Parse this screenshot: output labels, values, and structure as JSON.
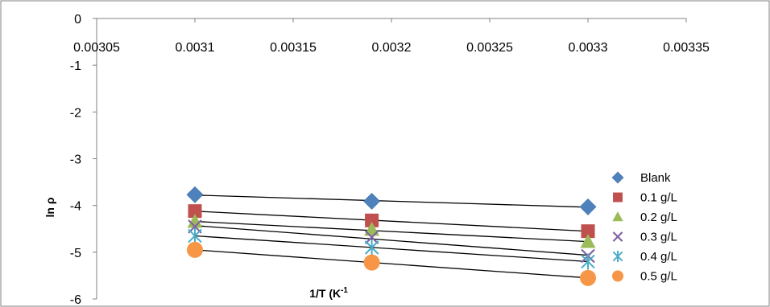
{
  "chart_data": {
    "type": "scatter",
    "title": "",
    "xlabel": "1/T (K-1",
    "xlabel_main": "1/T (K",
    "xlabel_sup": "-1",
    "ylabel": "ln ρ",
    "xlim": [
      0.00305,
      0.00335
    ],
    "ylim": [
      -6,
      0
    ],
    "x_tick_labels": [
      "0.00305",
      "0.0031",
      "0.00315",
      "0.0032",
      "0.00325",
      "0.0033",
      "0.00335"
    ],
    "y_tick_labels": [
      "0",
      "-1",
      "-2",
      "-3",
      "-4",
      "-5",
      "-6"
    ],
    "x_ticks": [
      0.00305,
      0.0031,
      0.00315,
      0.0032,
      0.00325,
      0.0033,
      0.00335
    ],
    "y_ticks": [
      0,
      -1,
      -2,
      -3,
      -4,
      -5,
      -6
    ],
    "x_axis_position": "top",
    "grid": false,
    "legend_position": "right",
    "trendlines": true,
    "series": [
      {
        "name": "Blank",
        "marker": "diamond",
        "color": "#4F81BD",
        "x": [
          0.0031,
          0.00319,
          0.0033
        ],
        "y": [
          -3.77,
          -3.91,
          -4.03
        ]
      },
      {
        "name": "0.1 g/L",
        "marker": "square",
        "color": "#C0504D",
        "x": [
          0.0031,
          0.00319,
          0.0033
        ],
        "y": [
          -4.12,
          -4.32,
          -4.55
        ]
      },
      {
        "name": "0.2 g/L",
        "marker": "triangle",
        "color": "#9BBB59",
        "x": [
          0.0031,
          0.00319,
          0.0033
        ],
        "y": [
          -4.35,
          -4.52,
          -4.78
        ]
      },
      {
        "name": "0.3 g/L",
        "marker": "x",
        "color": "#8064A2",
        "x": [
          0.0031,
          0.00319,
          0.0033
        ],
        "y": [
          -4.45,
          -4.68,
          -5.08
        ]
      },
      {
        "name": "0.4 g/L",
        "marker": "star",
        "color": "#4BACC6",
        "x": [
          0.0031,
          0.00319,
          0.0033
        ],
        "y": [
          -4.65,
          -4.9,
          -5.2
        ]
      },
      {
        "name": "0.5 g/L",
        "marker": "circle",
        "color": "#F79646",
        "x": [
          0.0031,
          0.00319,
          0.0033
        ],
        "y": [
          -4.95,
          -5.22,
          -5.55
        ]
      }
    ]
  }
}
